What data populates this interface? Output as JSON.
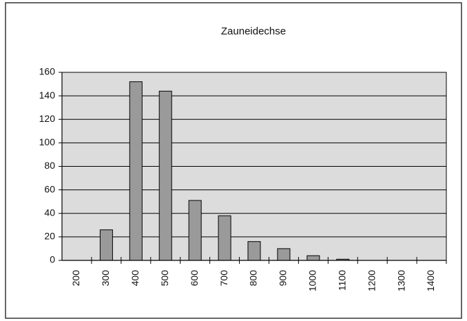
{
  "chart_data": {
    "type": "bar",
    "title": "Zauneidechse",
    "categories": [
      "200",
      "300",
      "400",
      "500",
      "600",
      "700",
      "800",
      "900",
      "1000",
      "1100",
      "1200",
      "1300",
      "1400"
    ],
    "values": [
      0,
      26,
      152,
      144,
      51,
      38,
      16,
      10,
      4,
      1,
      0,
      0,
      0
    ],
    "color": "#9a9a9a",
    "ylim": [
      0,
      160
    ],
    "yticks": [
      0,
      20,
      40,
      60,
      80,
      100,
      120,
      140,
      160
    ],
    "grid": true
  }
}
